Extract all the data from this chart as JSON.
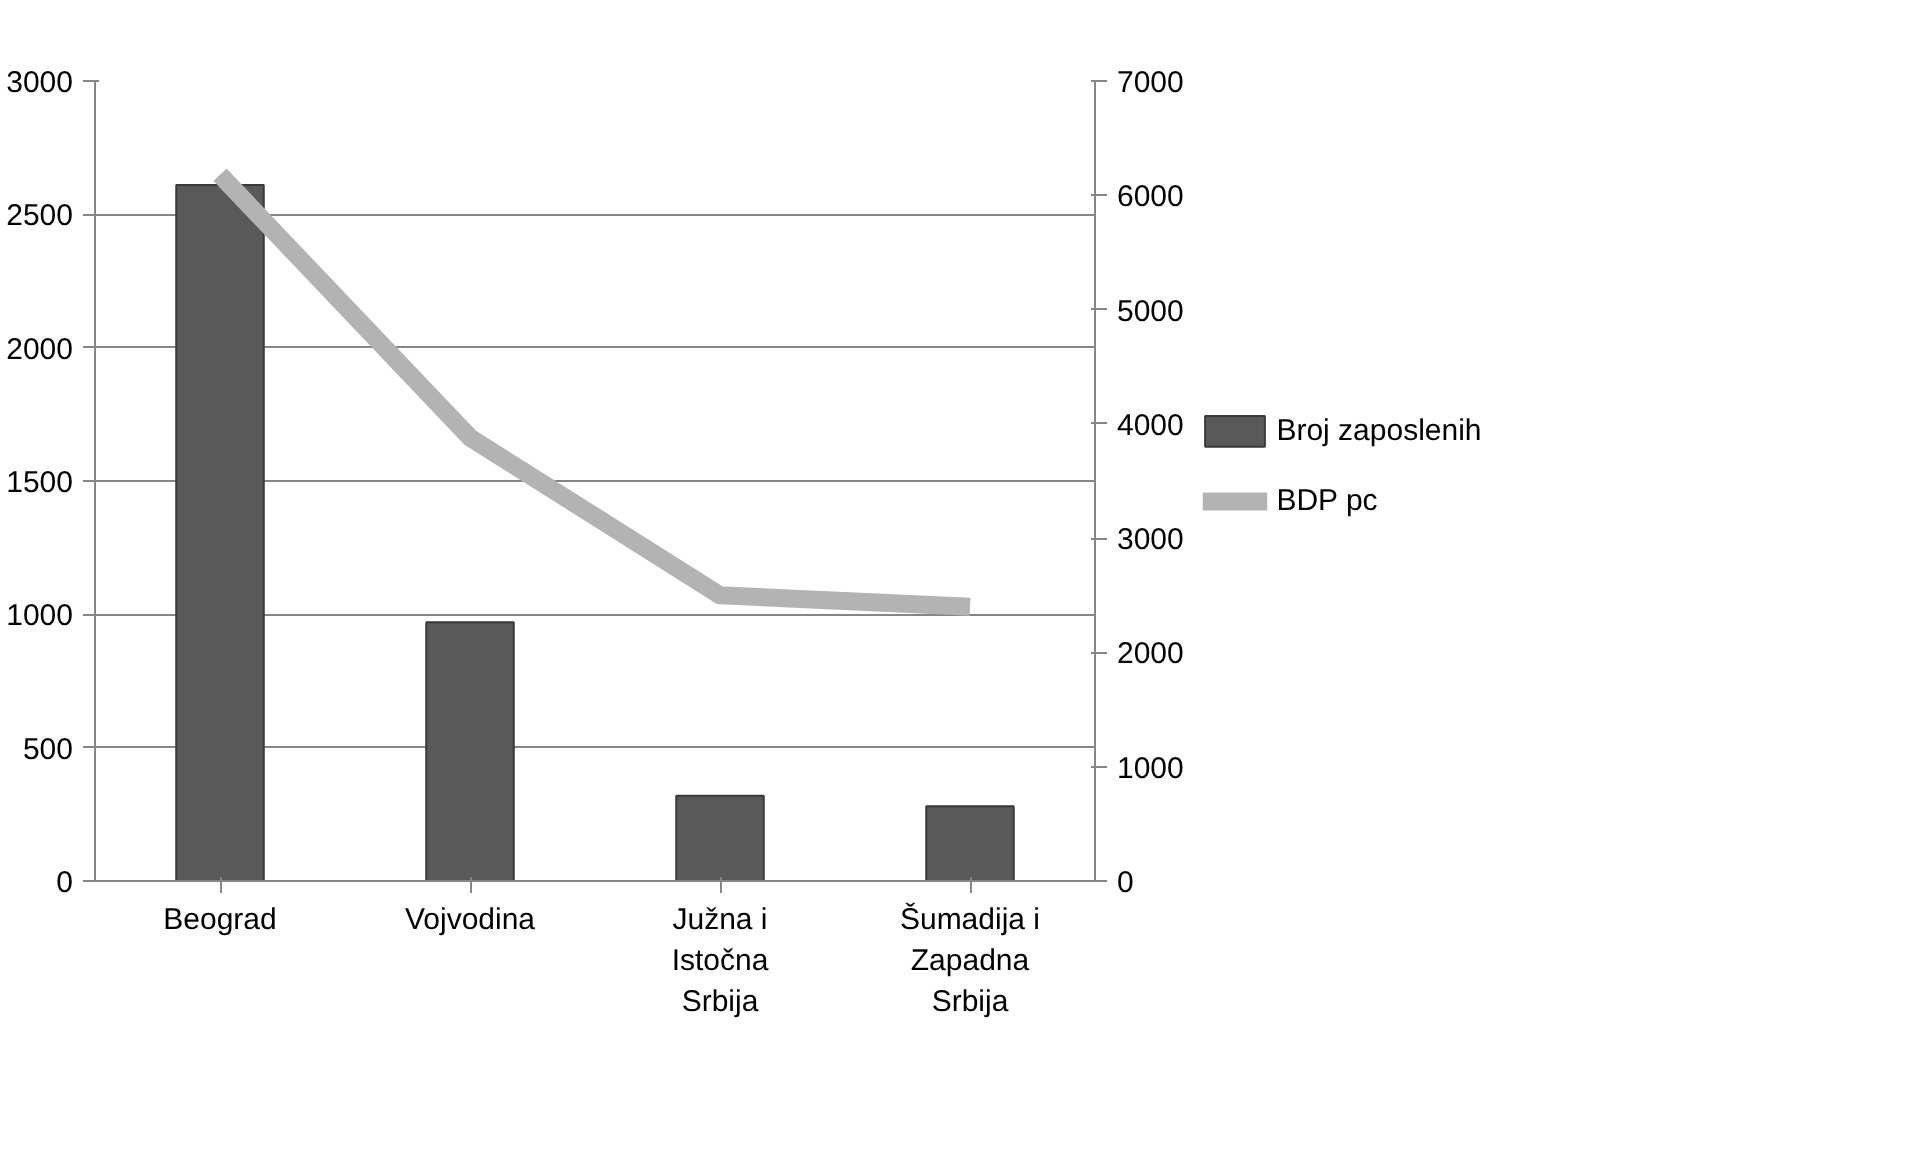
{
  "chart_data": {
    "type": "bar",
    "categories": [
      "Beograd",
      "Vojvodina",
      "Južna i Istočna Srbija",
      "Šumadija i Zapadna Srbija"
    ],
    "series": [
      {
        "name": "Broj zaposlenih",
        "color": "#595959",
        "values": [
          2610,
          970,
          320,
          280
        ]
      },
      {
        "name": "BDP pc",
        "type": "line",
        "axis": "y2",
        "color": "#b3b3b3",
        "values": [
          6180,
          3880,
          2500,
          2400
        ]
      }
    ],
    "ylim": [
      0,
      3000
    ],
    "yticks": [
      0,
      500,
      1000,
      1500,
      2000,
      2500,
      3000
    ],
    "y2lim": [
      0,
      7000
    ],
    "y2ticks": [
      0,
      1000,
      2000,
      3000,
      4000,
      5000,
      6000,
      7000
    ],
    "grid": "y",
    "legend": "right"
  }
}
